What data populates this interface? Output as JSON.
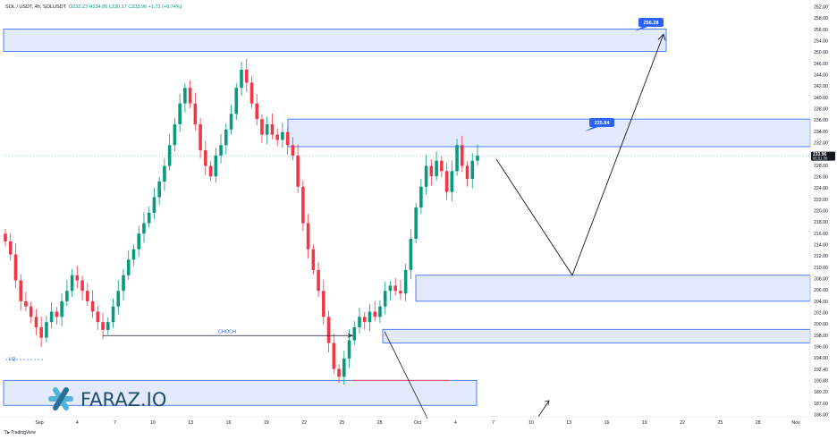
{
  "header": {
    "symbol": "SOL / USDT, 4h, SOLUSDT",
    "ohlc": "O232.23 H234.86 L230.17 C233.96 +1.72 (+0.74%)"
  },
  "branding": {
    "logo_text": "FARAZ.IO",
    "footer": "TradingView"
  },
  "colors": {
    "bull": "#089981",
    "bear": "#f23645",
    "zone_fill": "#dde6fb",
    "zone_stroke": "#2962ff",
    "label_bg": "#2962ff",
    "current_price_bg": "#131722",
    "logo_accent": "#4fb3d9"
  },
  "chart_data": {
    "type": "candlestick",
    "symbol": "SOL/USDT",
    "timeframe": "4h",
    "ylim": [
      184.5,
      262.5
    ],
    "y_ticks": [
      "262.00",
      "258.00",
      "256.00",
      "254.00",
      "250.00",
      "246.00",
      "244.00",
      "242.00",
      "240.00",
      "238.00",
      "236.00",
      "234.00",
      "232.00",
      "230.00",
      "228.00",
      "226.00",
      "224.00",
      "222.00",
      "220.00",
      "218.00",
      "216.00",
      "214.00",
      "212.00",
      "210.00",
      "208.00",
      "206.00",
      "204.00",
      "202.00",
      "200.00",
      "198.00",
      "196.00",
      "194.00",
      "192.40",
      "190.80",
      "189.20",
      "187.60",
      "186.00"
    ],
    "x_ticks": [
      "Sep",
      "4",
      "7",
      "10",
      "13",
      "16",
      "19",
      "22",
      "25",
      "28",
      "Oct",
      "4",
      "7",
      "10",
      "13",
      "16",
      "19",
      "22",
      "25",
      "28",
      "Nov"
    ],
    "current_price": {
      "value": "233.96",
      "timer": "05:51:30"
    },
    "closes": [
      217.5,
      215.0,
      210.0,
      206.0,
      205.0,
      203.0,
      201.0,
      199.0,
      202.0,
      204.0,
      203.0,
      206.0,
      208.0,
      211.0,
      210.0,
      208.0,
      206.0,
      204.0,
      202.0,
      200.5,
      202.0,
      205.0,
      208.0,
      211.0,
      214.0,
      216.0,
      219.0,
      221.0,
      223.0,
      226.0,
      229.0,
      232.0,
      236.0,
      240.0,
      244.0,
      247.0,
      244.0,
      240.0,
      235.0,
      232.0,
      230.0,
      234.0,
      236.0,
      239.0,
      242.0,
      247.0,
      250.5,
      248.0,
      244.0,
      241.0,
      238.0,
      240.0,
      238.0,
      237.0,
      238.5,
      236.0,
      234.0,
      228.0,
      221.0,
      216.0,
      212.0,
      208.0,
      203.0,
      198.0,
      193.0,
      191.5,
      195.0,
      198.5,
      201.0,
      203.0,
      202.0,
      204.0,
      203.0,
      205.0,
      208.0,
      209.0,
      208.0,
      207.5,
      212.0,
      218.0,
      224.0,
      228.0,
      232.0,
      230.0,
      233.0,
      231.0,
      227.0,
      231.0,
      236.0,
      232.0,
      229.5,
      233.0,
      233.96
    ],
    "zones": [
      {
        "label": "256.28",
        "from": 254.0,
        "to": 258.3
      },
      {
        "label": "235.84",
        "from": 235.7,
        "to": 241.0
      },
      {
        "label": "",
        "from": 206.0,
        "to": 211.0
      },
      {
        "label": "",
        "from": 198.0,
        "to": 200.6
      },
      {
        "label": "",
        "from": 186.0,
        "to": 190.8
      }
    ],
    "annotations": [
      {
        "text": "CHOCH",
        "price": 199.4
      },
      {
        "text": "LQ",
        "price": 194.8
      }
    ],
    "projection": {
      "points": [
        233.3,
        211.0,
        257.3
      ]
    }
  }
}
